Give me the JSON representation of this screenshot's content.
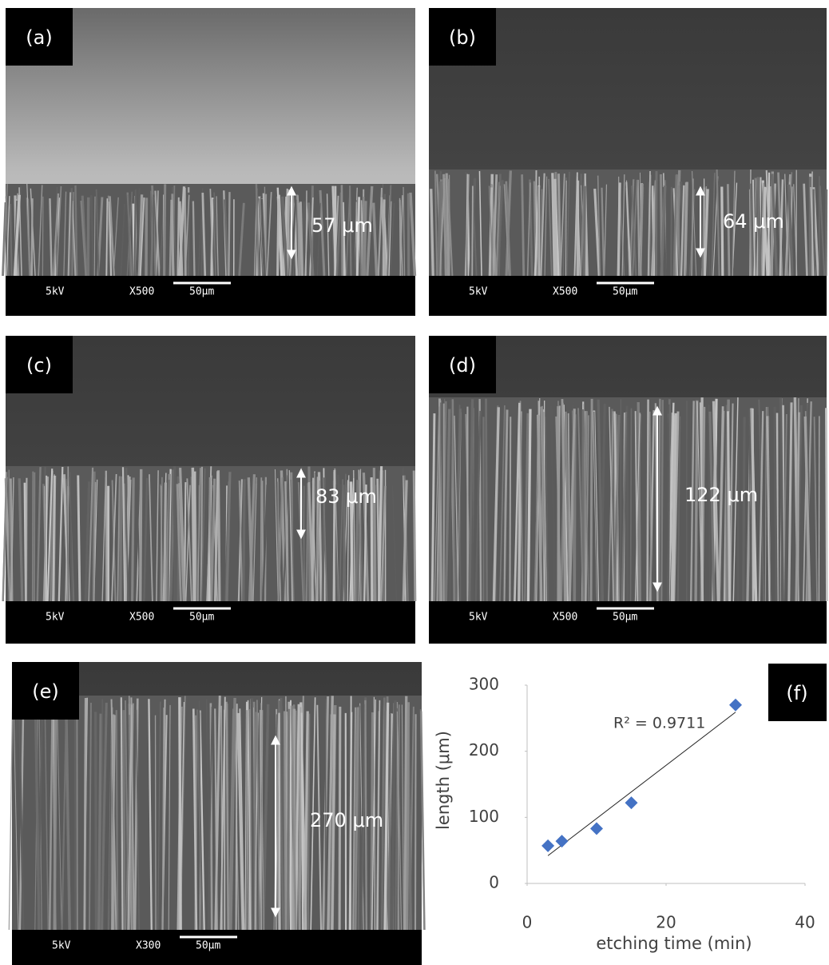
{
  "panels": [
    {
      "label": "(a)",
      "measurement": "57 μm",
      "voltage": "5kV",
      "magnification": "X500",
      "scale_bar": "50μm"
    },
    {
      "label": "(b)",
      "measurement": "64 μm",
      "voltage": "5kV",
      "magnification": "X500",
      "scale_bar": "50μm"
    },
    {
      "label": "(c)",
      "measurement": "83 μm",
      "voltage": "5kV",
      "magnification": "X500",
      "scale_bar": "50μm"
    },
    {
      "label": "(d)",
      "measurement": "122 μm",
      "voltage": "5kV",
      "magnification": "X500",
      "scale_bar": "50μm"
    },
    {
      "label": "(e)",
      "measurement": "270 μm",
      "voltage": "5kV",
      "magnification": "X300",
      "scale_bar": "50μm"
    }
  ],
  "chart_data": {
    "type": "scatter",
    "label": "(f)",
    "x": [
      3,
      5,
      10,
      15,
      30
    ],
    "values": [
      57,
      64,
      83,
      122,
      270
    ],
    "color": "#4472c4",
    "xlim": [
      0,
      40
    ],
    "ylim": [
      0,
      300
    ],
    "xticks": [
      0,
      20,
      40
    ],
    "yticks": [
      0,
      100,
      200,
      300
    ],
    "x_label": "etching time (min)",
    "y_label": "length (μm)",
    "annotation": "R² = 0.9711",
    "trendline": true
  }
}
